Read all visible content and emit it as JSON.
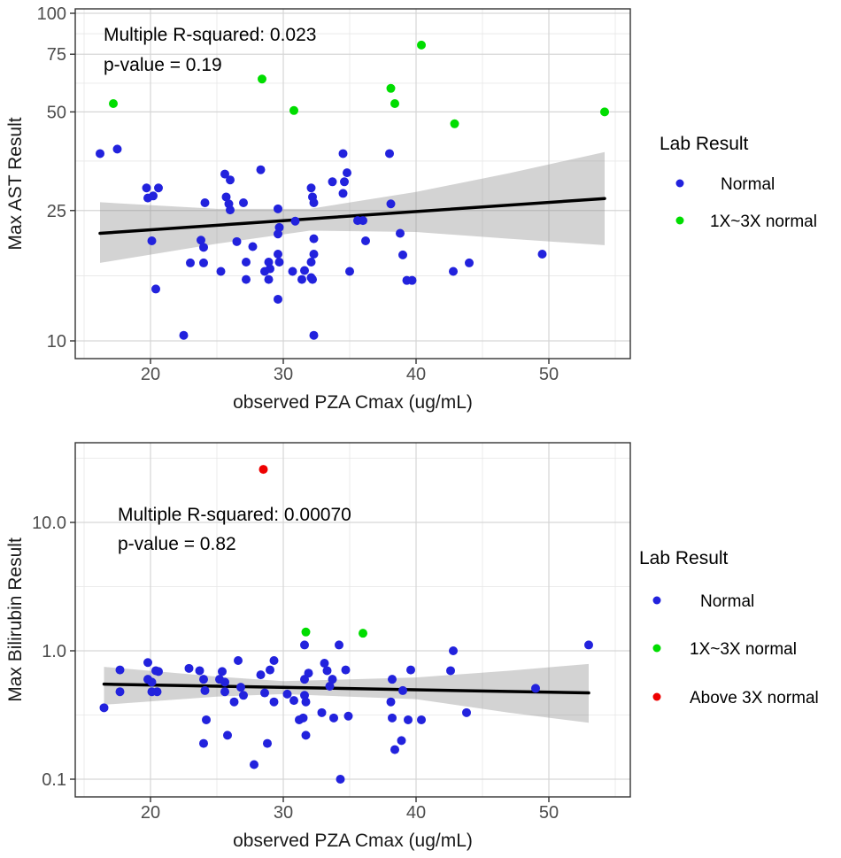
{
  "chart_data": [
    {
      "id": "ast",
      "type": "scatter",
      "xlabel": "observed PZA Cmax (ug/mL)",
      "ylabel": "Max AST Result",
      "x_scale": "linear",
      "y_scale": "log10",
      "xlim": [
        14.3,
        56.1
      ],
      "ylim": [
        8.8,
        103
      ],
      "x_ticks": [
        20,
        30,
        40,
        50
      ],
      "x_tick_labels": [
        "20",
        "30",
        "40",
        "50"
      ],
      "x_minor_ticks": [
        15,
        25,
        35,
        45,
        55
      ],
      "y_ticks": [
        10,
        25,
        50,
        75,
        100
      ],
      "y_tick_labels": [
        "10",
        "25",
        "50",
        "75",
        "100"
      ],
      "y_minor_ticks": [
        15.8,
        35.4,
        61.2,
        86.6
      ],
      "grid": true,
      "annotation": {
        "lines": [
          "Multiple R-squared: 0.023",
          "p-value = 0.19"
        ]
      },
      "legend": {
        "title": "Lab Result",
        "position": "right",
        "items": [
          {
            "label": "Normal",
            "color": "#2222dd"
          },
          {
            "label": "1X~3X normal",
            "color": "#00dd00"
          }
        ]
      },
      "series": [
        {
          "name": "Normal",
          "color": "#2222dd",
          "points": [
            [
              16.2,
              37.3
            ],
            [
              17.5,
              38.5
            ],
            [
              34.5,
              37.3
            ],
            [
              38.0,
              37.3
            ],
            [
              19.7,
              29.3
            ],
            [
              20.6,
              29.3
            ],
            [
              19.8,
              27.3
            ],
            [
              20.2,
              27.7
            ],
            [
              25.6,
              32.3
            ],
            [
              26.0,
              31.0
            ],
            [
              28.3,
              33.3
            ],
            [
              34.8,
              32.6
            ],
            [
              33.7,
              30.6
            ],
            [
              34.6,
              30.6
            ],
            [
              32.1,
              29.3
            ],
            [
              34.5,
              28.2
            ],
            [
              32.2,
              27.5
            ],
            [
              32.3,
              26.4
            ],
            [
              24.1,
              26.4
            ],
            [
              25.7,
              27.5
            ],
            [
              25.9,
              26.2
            ],
            [
              26.0,
              25.1
            ],
            [
              27.0,
              26.4
            ],
            [
              29.6,
              25.3
            ],
            [
              29.6,
              21.2
            ],
            [
              29.7,
              22.2
            ],
            [
              29.6,
              18.4
            ],
            [
              30.9,
              23.2
            ],
            [
              32.3,
              20.5
            ],
            [
              32.3,
              18.4
            ],
            [
              32.1,
              17.4
            ],
            [
              20.1,
              20.2
            ],
            [
              23.8,
              20.3
            ],
            [
              24.0,
              19.3
            ],
            [
              23.0,
              17.3
            ],
            [
              24.0,
              17.3
            ],
            [
              25.3,
              16.3
            ],
            [
              26.5,
              20.1
            ],
            [
              27.7,
              19.4
            ],
            [
              27.2,
              17.4
            ],
            [
              28.9,
              17.4
            ],
            [
              27.2,
              15.4
            ],
            [
              28.6,
              16.3
            ],
            [
              28.9,
              15.4
            ],
            [
              29.0,
              16.6
            ],
            [
              29.7,
              17.4
            ],
            [
              30.7,
              16.3
            ],
            [
              31.4,
              15.4
            ],
            [
              31.6,
              16.4
            ],
            [
              32.1,
              15.6
            ],
            [
              32.2,
              15.4
            ],
            [
              35.0,
              16.3
            ],
            [
              20.4,
              14.4
            ],
            [
              29.6,
              13.4
            ],
            [
              22.5,
              10.4
            ],
            [
              32.3,
              10.4
            ],
            [
              38.1,
              26.2
            ],
            [
              35.6,
              23.3
            ],
            [
              36.0,
              23.3
            ],
            [
              36.2,
              20.2
            ],
            [
              38.8,
              21.3
            ],
            [
              39.0,
              18.3
            ],
            [
              39.3,
              15.3
            ],
            [
              39.7,
              15.3
            ],
            [
              44.0,
              17.3
            ],
            [
              42.8,
              16.3
            ],
            [
              49.5,
              18.4
            ]
          ]
        },
        {
          "name": "1X~3X normal",
          "color": "#00dd00",
          "points": [
            [
              17.2,
              53
            ],
            [
              28.4,
              63
            ],
            [
              30.8,
              50.5
            ],
            [
              38.1,
              59
            ],
            [
              38.4,
              53
            ],
            [
              40.4,
              80
            ],
            [
              42.9,
              46
            ],
            [
              54.2,
              50
            ]
          ]
        }
      ],
      "regression": {
        "x": [
          16.2,
          54.2
        ],
        "y": [
          21.3,
          27.2
        ],
        "color": "#000000"
      },
      "ci_band": {
        "x": [
          16.2,
          25.0,
          32.0,
          40.0,
          47.0,
          54.2
        ],
        "upper": [
          26.5,
          25.3,
          25.3,
          28.5,
          32.5,
          37.7
        ],
        "lower": [
          17.3,
          19.8,
          21.7,
          21.5,
          20.5,
          19.6
        ],
        "color": "rgba(140,140,140,0.38)"
      }
    },
    {
      "id": "bili",
      "type": "scatter",
      "xlabel": "observed PZA Cmax (ug/mL)",
      "ylabel": "Max Bilirubin Result",
      "x_scale": "linear",
      "y_scale": "log10",
      "xlim": [
        14.3,
        56.1
      ],
      "ylim": [
        0.073,
        41.8
      ],
      "x_ticks": [
        20,
        30,
        40,
        50
      ],
      "x_tick_labels": [
        "20",
        "30",
        "40",
        "50"
      ],
      "x_minor_ticks": [
        15,
        25,
        35,
        45,
        55
      ],
      "y_ticks": [
        0.1,
        1.0,
        10.0
      ],
      "y_tick_labels": [
        "0.1",
        "1.0",
        "10.0"
      ],
      "y_minor_ticks": [
        0.316,
        3.16,
        31.6
      ],
      "grid": true,
      "annotation": {
        "lines": [
          "Multiple R-squared: 0.00070",
          "p-value = 0.82"
        ]
      },
      "legend": {
        "title": "Lab Result",
        "position": "right",
        "items": [
          {
            "label": "Normal",
            "color": "#2222dd"
          },
          {
            "label": "1X~3X normal",
            "color": "#00dd00"
          },
          {
            "label": "Above 3X normal",
            "color": "#ee0000"
          }
        ]
      },
      "series": [
        {
          "name": "Normal",
          "color": "#2222dd",
          "points": [
            [
              16.5,
              0.36
            ],
            [
              17.7,
              0.71
            ],
            [
              17.7,
              0.48
            ],
            [
              19.8,
              0.81
            ],
            [
              19.8,
              0.6
            ],
            [
              20.1,
              0.57
            ],
            [
              20.4,
              0.7
            ],
            [
              20.6,
              0.69
            ],
            [
              20.1,
              0.48
            ],
            [
              20.5,
              0.48
            ],
            [
              22.9,
              0.73
            ],
            [
              23.7,
              0.7
            ],
            [
              24.0,
              0.6
            ],
            [
              24.1,
              0.49
            ],
            [
              24.2,
              0.29
            ],
            [
              24.0,
              0.19
            ],
            [
              25.4,
              0.69
            ],
            [
              25.2,
              0.6
            ],
            [
              25.6,
              0.57
            ],
            [
              25.6,
              0.48
            ],
            [
              25.8,
              0.22
            ],
            [
              26.3,
              0.4
            ],
            [
              26.6,
              0.84
            ],
            [
              26.8,
              0.52
            ],
            [
              27.0,
              0.45
            ],
            [
              27.8,
              0.13
            ],
            [
              28.3,
              0.65
            ],
            [
              28.6,
              0.47
            ],
            [
              28.8,
              0.19
            ],
            [
              29.0,
              0.71
            ],
            [
              29.3,
              0.84
            ],
            [
              29.3,
              0.4
            ],
            [
              30.3,
              0.46
            ],
            [
              30.8,
              0.41
            ],
            [
              31.2,
              0.29
            ],
            [
              31.5,
              0.3
            ],
            [
              31.6,
              1.11
            ],
            [
              31.9,
              0.67
            ],
            [
              31.6,
              0.6
            ],
            [
              31.6,
              0.45
            ],
            [
              31.7,
              0.4
            ],
            [
              31.7,
              0.22
            ],
            [
              32.9,
              0.33
            ],
            [
              33.1,
              0.8
            ],
            [
              33.3,
              0.7
            ],
            [
              33.5,
              0.53
            ],
            [
              33.7,
              0.6
            ],
            [
              33.8,
              0.3
            ],
            [
              34.2,
              1.11
            ],
            [
              34.7,
              0.71
            ],
            [
              34.9,
              0.31
            ],
            [
              34.3,
              0.1
            ],
            [
              39.6,
              0.71
            ],
            [
              42.6,
              0.7
            ],
            [
              38.2,
              0.6
            ],
            [
              39.0,
              0.49
            ],
            [
              38.1,
              0.4
            ],
            [
              38.2,
              0.3
            ],
            [
              39.4,
              0.29
            ],
            [
              40.4,
              0.29
            ],
            [
              42.8,
              1.0
            ],
            [
              43.8,
              0.33
            ],
            [
              49.0,
              0.51
            ],
            [
              38.9,
              0.2
            ],
            [
              38.4,
              0.17
            ],
            [
              53.0,
              1.11
            ]
          ]
        },
        {
          "name": "1X~3X normal",
          "color": "#00dd00",
          "points": [
            [
              31.7,
              1.4
            ],
            [
              36.0,
              1.37
            ]
          ]
        },
        {
          "name": "Above 3X normal",
          "color": "#ee0000",
          "points": [
            [
              28.5,
              25.9
            ]
          ]
        }
      ],
      "regression": {
        "x": [
          16.5,
          53.0
        ],
        "y": [
          0.55,
          0.47
        ],
        "color": "#000000"
      },
      "ci_band": {
        "x": [
          16.5,
          25.0,
          30.0,
          40.0,
          47.0,
          53.0
        ],
        "upper": [
          0.75,
          0.63,
          0.58,
          0.62,
          0.7,
          0.79
        ],
        "lower": [
          0.38,
          0.44,
          0.46,
          0.42,
          0.33,
          0.275
        ],
        "color": "rgba(140,140,140,0.38)"
      }
    }
  ],
  "style": {
    "panel_border_color": "#333333",
    "grid_major_color": "#d6d6d6",
    "grid_minor_color": "#e9e9e9",
    "tick_label_color": "#4d4d4d",
    "axis_title_color": "#1a1a1a",
    "annotation_color": "#000000",
    "background_color": "#ffffff"
  }
}
